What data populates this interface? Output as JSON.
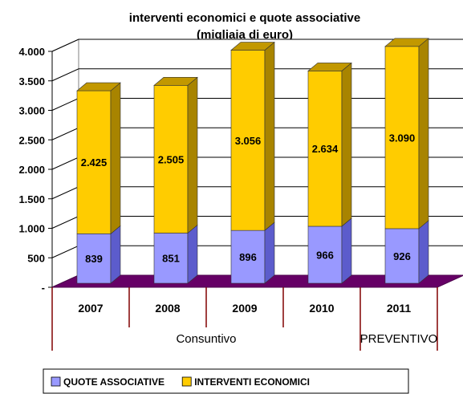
{
  "chart_data": {
    "type": "bar",
    "stacked": true,
    "three_d": true,
    "title": "interventi economici e quote associative",
    "subtitle": "(migliaia di euro)",
    "categories": [
      "2007",
      "2008",
      "2009",
      "2010",
      "2011"
    ],
    "groups": [
      {
        "label": "Consuntivo",
        "categories": [
          "2007",
          "2008",
          "2009",
          "2010"
        ]
      },
      {
        "label": "PREVENTIVO",
        "categories": [
          "2011"
        ]
      }
    ],
    "series": [
      {
        "name": "QUOTE ASSOCIATIVE",
        "values": [
          839,
          851,
          896,
          966,
          926
        ],
        "value_labels": [
          "839",
          "851",
          "896",
          "966",
          "926"
        ],
        "color": "#9999ff",
        "side_color": "#5c5ccc",
        "top_color": "#7777dd"
      },
      {
        "name": "INTERVENTI ECONOMICI",
        "values": [
          2425,
          2505,
          3056,
          2634,
          3090
        ],
        "value_labels": [
          "2.425",
          "2.505",
          "3.056",
          "2.634",
          "3.090"
        ],
        "color": "#ffcc00",
        "side_color": "#a88400",
        "top_color": "#c29800"
      }
    ],
    "ylim": [
      0,
      4000
    ],
    "y_ticks": [
      "-",
      "500",
      "1.000",
      "1.500",
      "2.000",
      "2.500",
      "3.000",
      "3.500",
      "4.000"
    ],
    "y_tick_values": [
      0,
      500,
      1000,
      1500,
      2000,
      2500,
      3000,
      3500,
      4000
    ],
    "floor_color": "#660066",
    "grid": true,
    "legend_position": "bottom"
  }
}
